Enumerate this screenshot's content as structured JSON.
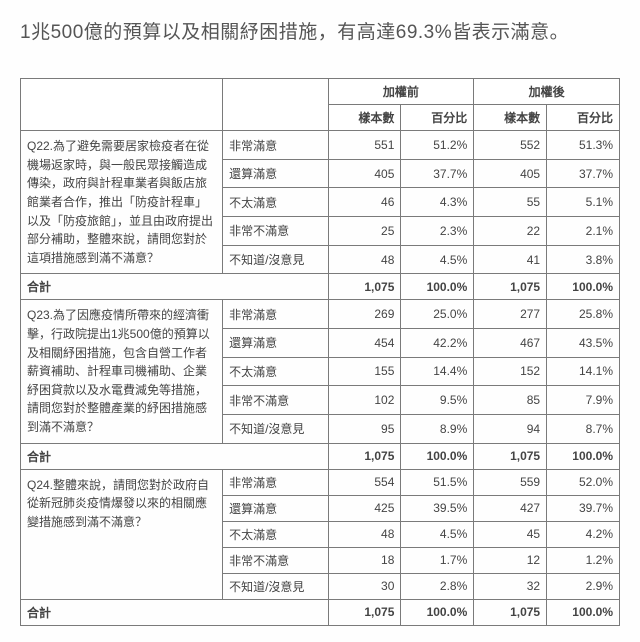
{
  "intro": "1兆500億的預算以及相關紓困措施，有高達69.3%皆表示滿意。",
  "header": {
    "group1": "加權前",
    "group2": "加權後",
    "count": "樣本數",
    "pct": "百分比"
  },
  "totalLabel": "合計",
  "questions": [
    {
      "text": "Q22.為了避免需要居家檢疫者在從機場返家時，與一般民眾接觸造成傳染，政府與計程車業者與飯店旅館業者合作，推出「防疫計程車」以及「防疫旅館」，並且由政府提出部分補助，整體來說，請問您對於這項措施感到滿不滿意？",
      "rows": [
        {
          "opt": "非常滿意",
          "c1": "551",
          "p1": "51.2%",
          "c2": "552",
          "p2": "51.3%"
        },
        {
          "opt": "還算滿意",
          "c1": "405",
          "p1": "37.7%",
          "c2": "405",
          "p2": "37.7%"
        },
        {
          "opt": "不太滿意",
          "c1": "46",
          "p1": "4.3%",
          "c2": "55",
          "p2": "5.1%"
        },
        {
          "opt": "非常不滿意",
          "c1": "25",
          "p1": "2.3%",
          "c2": "22",
          "p2": "2.1%"
        },
        {
          "opt": "不知道/沒意見",
          "c1": "48",
          "p1": "4.5%",
          "c2": "41",
          "p2": "3.8%"
        }
      ],
      "total": {
        "c1": "1,075",
        "p1": "100.0%",
        "c2": "1,075",
        "p2": "100.0%"
      }
    },
    {
      "text": "Q23.為了因應疫情所帶來的經濟衝擊，行政院提出1兆500億的預算以及相關紓困措施，包含自營工作者薪資補助、計程車司機補助、企業紓困貸款以及水電費減免等措施，請問您對於整體產業的紓困措施感到滿不滿意？",
      "rows": [
        {
          "opt": "非常滿意",
          "c1": "269",
          "p1": "25.0%",
          "c2": "277",
          "p2": "25.8%"
        },
        {
          "opt": "還算滿意",
          "c1": "454",
          "p1": "42.2%",
          "c2": "467",
          "p2": "43.5%"
        },
        {
          "opt": "不太滿意",
          "c1": "155",
          "p1": "14.4%",
          "c2": "152",
          "p2": "14.1%"
        },
        {
          "opt": "非常不滿意",
          "c1": "102",
          "p1": "9.5%",
          "c2": "85",
          "p2": "7.9%"
        },
        {
          "opt": "不知道/沒意見",
          "c1": "95",
          "p1": "8.9%",
          "c2": "94",
          "p2": "8.7%"
        }
      ],
      "total": {
        "c1": "1,075",
        "p1": "100.0%",
        "c2": "1,075",
        "p2": "100.0%"
      }
    },
    {
      "text": "Q24.整體來說，請問您對於政府自從新冠肺炎疫情爆發以來的相關應變措施感到滿不滿意？",
      "rows": [
        {
          "opt": "非常滿意",
          "c1": "554",
          "p1": "51.5%",
          "c2": "559",
          "p2": "52.0%"
        },
        {
          "opt": "還算滿意",
          "c1": "425",
          "p1": "39.5%",
          "c2": "427",
          "p2": "39.7%"
        },
        {
          "opt": "不太滿意",
          "c1": "48",
          "p1": "4.5%",
          "c2": "45",
          "p2": "4.2%"
        },
        {
          "opt": "非常不滿意",
          "c1": "18",
          "p1": "1.7%",
          "c2": "12",
          "p2": "1.2%"
        },
        {
          "opt": "不知道/沒意見",
          "c1": "30",
          "p1": "2.8%",
          "c2": "32",
          "p2": "2.9%"
        }
      ],
      "total": {
        "c1": "1,075",
        "p1": "100.0%",
        "c2": "1,075",
        "p2": "100.0%"
      }
    }
  ]
}
